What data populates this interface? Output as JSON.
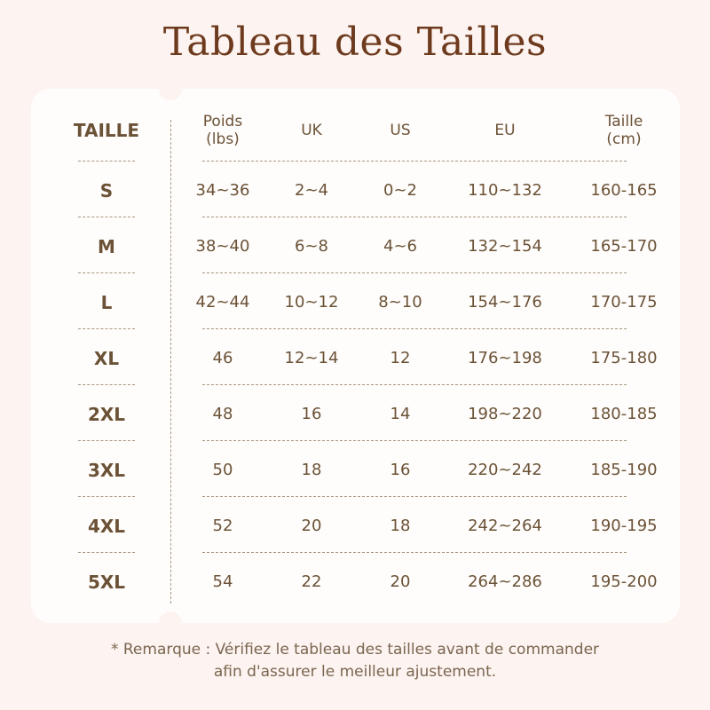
{
  "title": "Tableau des Tailles",
  "headers": [
    "TAILLE",
    "Poids\n(lbs)",
    "UK",
    "US",
    "EU",
    "Taille\n(cm)"
  ],
  "headers_lines": [
    [
      "TAILLE"
    ],
    [
      "Poids",
      "(lbs)"
    ],
    [
      "UK"
    ],
    [
      "US"
    ],
    [
      "EU"
    ],
    [
      "Taille",
      "(cm)"
    ]
  ],
  "rows": [
    [
      "S",
      "34~36",
      "2~4",
      "0~2",
      "110~132",
      "160-165"
    ],
    [
      "M",
      "38~40",
      "6~8",
      "4~6",
      "132~154",
      "165-170"
    ],
    [
      "L",
      "42~44",
      "10~12",
      "8~10",
      "154~176",
      "170-175"
    ],
    [
      "XL",
      "46",
      "12~14",
      "12",
      "176~198",
      "175-180"
    ],
    [
      "2XL",
      "48",
      "16",
      "14",
      "198~220",
      "180-185"
    ],
    [
      "3XL",
      "50",
      "18",
      "16",
      "220~242",
      "185-190"
    ],
    [
      "4XL",
      "52",
      "20",
      "18",
      "242~264",
      "190-195"
    ],
    [
      "5XL",
      "54",
      "22",
      "20",
      "264~286",
      "195-200"
    ]
  ],
  "note": {
    "line1": "* Remarque : Vérifiez le tableau des tailles avant de commander",
    "line2": "afin d'assurer le meilleur ajustement."
  },
  "colors": {
    "background": "#fdf3f0",
    "card": "#fffdfc",
    "title": "#6e3a1e",
    "text": "#6b5236"
  }
}
